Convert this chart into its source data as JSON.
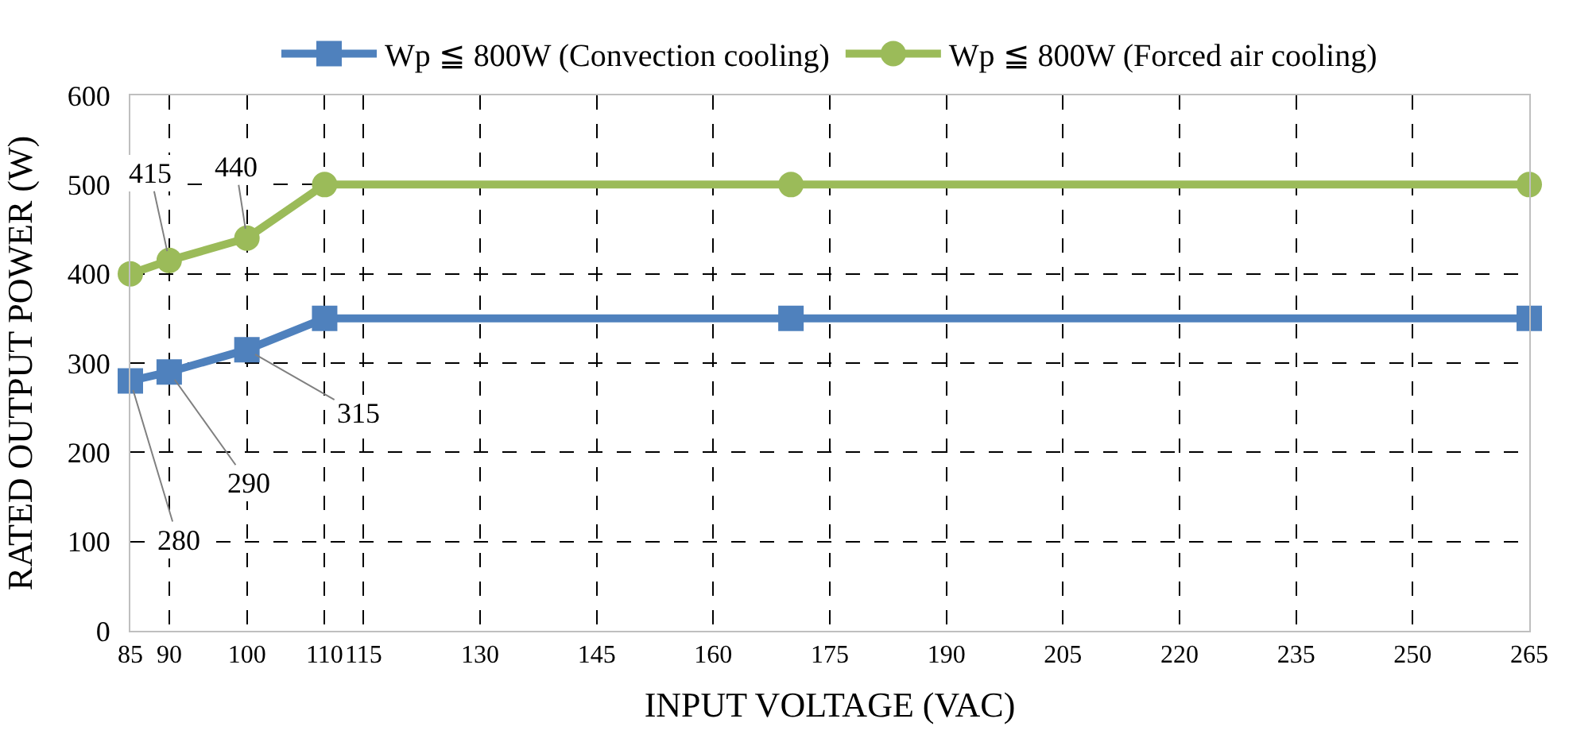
{
  "chart_data": {
    "type": "line",
    "xlabel": "INPUT VOLTAGE (VAC)",
    "ylabel": "RATED OUTPUT POWER (W)",
    "x": [
      85,
      90,
      100,
      110,
      170,
      265
    ],
    "series": [
      {
        "name": "Wp ≦ 800W (Convection cooling)",
        "color": "#4f81bd",
        "marker": "square",
        "values": [
          280,
          290,
          315,
          350,
          350,
          350
        ],
        "value_labels": [
          "280",
          "290",
          "315",
          null,
          null,
          null
        ]
      },
      {
        "name": "Wp ≦ 800W (Forced air cooling)",
        "color": "#9bbb59",
        "marker": "circle",
        "values": [
          400,
          415,
          440,
          500,
          500,
          500
        ],
        "value_labels": [
          null,
          "415",
          "440",
          null,
          null,
          null
        ]
      }
    ],
    "xlim": [
      85,
      265
    ],
    "xticks": [
      85,
      90,
      100,
      110,
      115,
      130,
      145,
      160,
      175,
      190,
      205,
      220,
      235,
      250,
      265
    ],
    "ylim": [
      0,
      600
    ],
    "yticks": [
      0,
      100,
      200,
      300,
      400,
      500,
      600
    ],
    "grid": true,
    "legend": "top",
    "line_style": "solid"
  }
}
